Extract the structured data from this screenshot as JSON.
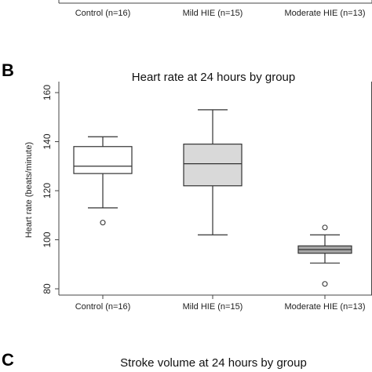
{
  "top_panel": {
    "categories": [
      "Control (n=16)",
      "Mild HIE (n=15)",
      "Moderate HIE (n=13)"
    ]
  },
  "panel_b": {
    "letter": "B",
    "chart_data": {
      "type": "box",
      "title": "Heart rate at 24 hours by group",
      "ylabel": "Heart rate (beats/minute)",
      "xlabel": "",
      "ylim": [
        80,
        160
      ],
      "yticks": [
        80,
        100,
        120,
        140,
        160
      ],
      "categories": [
        "Control (n=16)",
        "Mild HIE (n=15)",
        "Moderate HIE (n=13)"
      ],
      "boxes": [
        {
          "category": "Control (n=16)",
          "whisker_low": 113,
          "q1": 127,
          "median": 130,
          "q3": 138,
          "whisker_high": 142,
          "outliers": [
            107
          ],
          "fill": "#ffffff"
        },
        {
          "category": "Mild HIE (n=15)",
          "whisker_low": 102,
          "q1": 122,
          "median": 131,
          "q3": 139,
          "whisker_high": 153,
          "outliers": [],
          "fill": "#d9d9d9"
        },
        {
          "category": "Moderate HIE (n=13)",
          "whisker_low": 90.5,
          "q1": 94.5,
          "median": 96,
          "q3": 97.5,
          "whisker_high": 102,
          "outliers": [
            105,
            82
          ],
          "fill": "#a6a6a6"
        }
      ],
      "grid": false,
      "legend": "none"
    }
  },
  "panel_c": {
    "letter": "C",
    "title": "Stroke volume at 24 hours by group"
  }
}
